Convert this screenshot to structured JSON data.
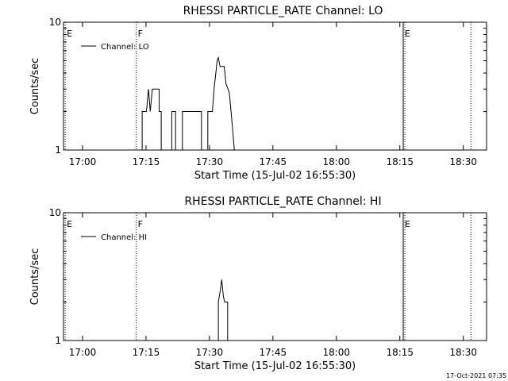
{
  "footer": {
    "timestamp": "17-Oct-2021 07:35"
  },
  "chart_data": [
    {
      "type": "line",
      "title": "RHESSI PARTICLE_RATE Channel: LO",
      "xlabel": "Start Time (15-Jul-02 16:55:30)",
      "ylabel": "Counts/sec",
      "x_units": "minutes since 16:55:30",
      "xlim": [
        0,
        100
      ],
      "ylim": [
        1,
        10
      ],
      "y_scale": "log",
      "y_tick_labels": [
        "1",
        "10"
      ],
      "x_tick_labels": [
        "17:00",
        "17:15",
        "17:30",
        "17:45",
        "18:00",
        "18:15",
        "18:30"
      ],
      "x_tick_values": [
        4.5,
        19.5,
        34.5,
        49.5,
        64.5,
        79.5,
        94.5
      ],
      "grid": false,
      "legend": "top-left",
      "series": [
        {
          "name": "Channel: LO",
          "color": "#000000",
          "points": [
            [
              18.6,
              1
            ],
            [
              18.6,
              2
            ],
            [
              19.6,
              2
            ],
            [
              20.1,
              3
            ],
            [
              20.5,
              2
            ],
            [
              21.0,
              3
            ],
            [
              22.6,
              3
            ],
            [
              22.6,
              2
            ],
            [
              23.1,
              2
            ],
            [
              23.1,
              1
            ],
            [
              25.6,
              1
            ],
            [
              25.6,
              2
            ],
            [
              26.5,
              2
            ],
            [
              26.5,
              1
            ],
            [
              28.1,
              1
            ],
            [
              28.1,
              2
            ],
            [
              32.6,
              2
            ],
            [
              32.6,
              1
            ],
            [
              34.1,
              1
            ],
            [
              34.1,
              2
            ],
            [
              35.2,
              2
            ],
            [
              35.6,
              3
            ],
            [
              36.0,
              4
            ],
            [
              36.3,
              5
            ],
            [
              36.6,
              5.3
            ],
            [
              37.0,
              4.5
            ],
            [
              38.0,
              4.5
            ],
            [
              38.4,
              3.3
            ],
            [
              38.9,
              3
            ],
            [
              39.2,
              2.8
            ],
            [
              39.6,
              2
            ],
            [
              40.4,
              1
            ]
          ]
        }
      ],
      "flags": [
        {
          "label": "E",
          "x": 0.4,
          "style": "dotted"
        },
        {
          "label": "F",
          "x": 17.2,
          "style": "dotted"
        },
        {
          "label": "E",
          "x": 80.3,
          "style": "solid"
        },
        {
          "label": "",
          "x": 96.3,
          "style": "dotted"
        }
      ]
    },
    {
      "type": "line",
      "title": "RHESSI PARTICLE_RATE Channel: HI",
      "xlabel": "Start Time (15-Jul-02 16:55:30)",
      "ylabel": "Counts/sec",
      "x_units": "minutes since 16:55:30",
      "xlim": [
        0,
        100
      ],
      "ylim": [
        1,
        10
      ],
      "y_scale": "log",
      "y_tick_labels": [
        "1",
        "10"
      ],
      "x_tick_labels": [
        "17:00",
        "17:15",
        "17:30",
        "17:45",
        "18:00",
        "18:15",
        "18:30"
      ],
      "x_tick_values": [
        4.5,
        19.5,
        34.5,
        49.5,
        64.5,
        79.5,
        94.5
      ],
      "grid": false,
      "legend": "top-left",
      "series": [
        {
          "name": "Channel: HI",
          "color": "#000000",
          "points": [
            [
              36.6,
              1
            ],
            [
              36.6,
              2
            ],
            [
              37.1,
              2.5
            ],
            [
              37.4,
              3
            ],
            [
              37.8,
              2.2
            ],
            [
              38.1,
              2
            ],
            [
              38.8,
              2
            ],
            [
              38.8,
              1
            ]
          ]
        }
      ],
      "flags": [
        {
          "label": "E",
          "x": 0.4,
          "style": "dotted"
        },
        {
          "label": "F",
          "x": 17.2,
          "style": "dotted"
        },
        {
          "label": "E",
          "x": 80.3,
          "style": "solid"
        },
        {
          "label": "",
          "x": 96.3,
          "style": "dotted"
        }
      ]
    }
  ]
}
